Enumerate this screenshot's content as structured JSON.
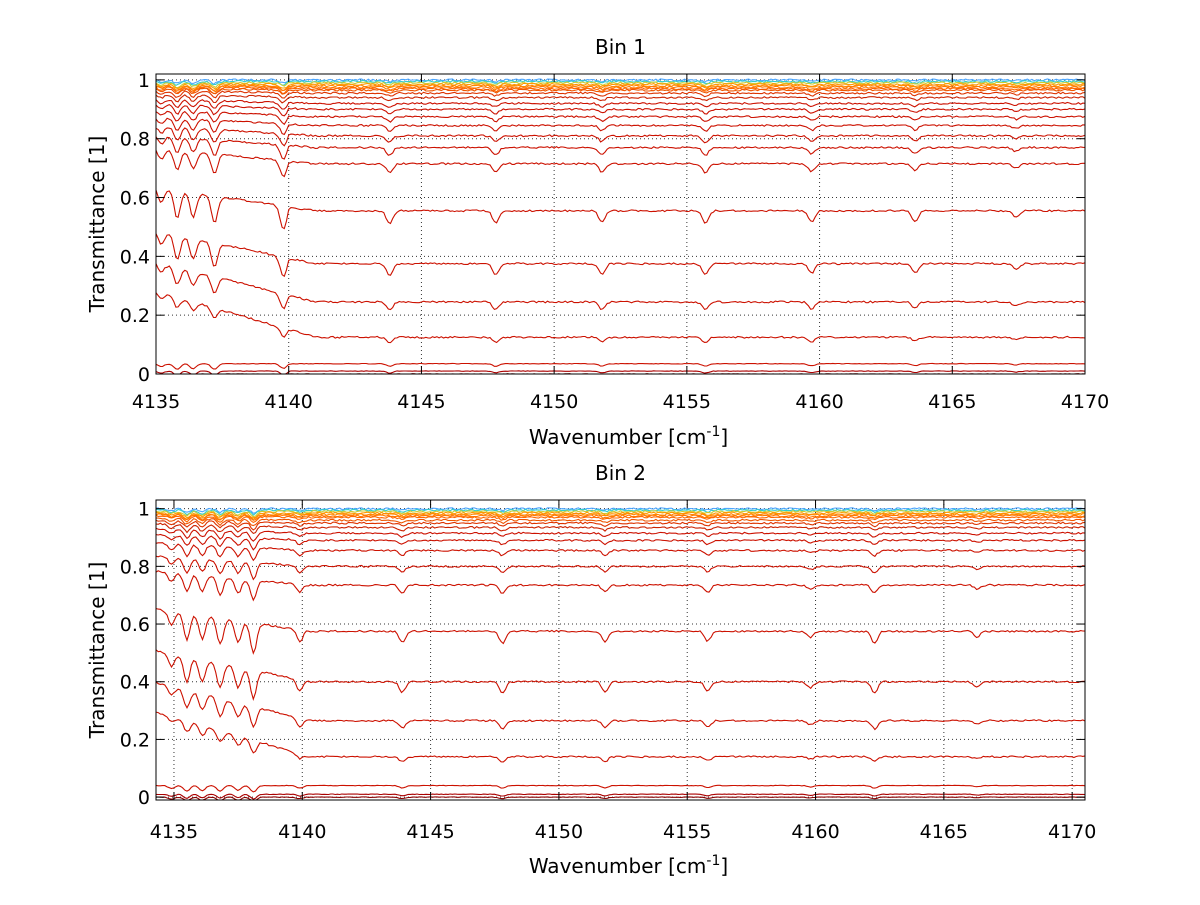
{
  "chart_data": [
    {
      "type": "line",
      "title": "Bin 1",
      "xlabel": "Wavenumber [cm",
      "xlabel_sup": "-1",
      "xlabel_close": "]",
      "ylabel": "Transmittance [1]",
      "xlim": [
        4135,
        4170
      ],
      "ylim": [
        0,
        1.02
      ],
      "xticks": [
        4135,
        4140,
        4145,
        4150,
        4155,
        4160,
        4165,
        4170
      ],
      "yticks": [
        0,
        0.2,
        0.4,
        0.6,
        0.8,
        1
      ],
      "grid": true,
      "legend": "none",
      "series_levels": [
        1.0,
        0.995,
        0.99,
        0.985,
        0.98,
        0.975,
        0.97,
        0.965,
        0.955,
        0.94,
        0.92,
        0.9,
        0.875,
        0.845,
        0.81,
        0.77,
        0.715,
        0.555,
        0.375,
        0.245,
        0.125,
        0.035,
        0.01,
        0.0
      ],
      "series_colors": [
        "#4da6ff",
        "#33cccc",
        "#cccc33",
        "#ff9900",
        "#ff8800",
        "#ff7700",
        "#ff6600",
        "#ee5500",
        "#dd3300",
        "#cc2200",
        "#cc1100",
        "#cc1100",
        "#cc1100",
        "#cc1100",
        "#cc1100",
        "#cc1100",
        "#cc1100",
        "#cc1100",
        "#cc1100",
        "#cc1100",
        "#cc1100",
        "#cc1100",
        "#aa0000",
        "#880000"
      ],
      "absorption_lines": [
        4135.2,
        4135.8,
        4136.4,
        4137.2,
        4139.8,
        4143.8,
        4147.8,
        4151.8,
        4155.7,
        4159.7,
        4163.6,
        4167.4
      ]
    },
    {
      "type": "line",
      "title": "Bin 2",
      "xlabel": "Wavenumber [cm",
      "xlabel_sup": "-1",
      "xlabel_close": "]",
      "ylabel": "Transmittance [1]",
      "xlim": [
        4134.3,
        4170.5
      ],
      "ylim": [
        -0.01,
        1.03
      ],
      "xticks": [
        4135,
        4140,
        4145,
        4150,
        4155,
        4160,
        4165,
        4170
      ],
      "yticks": [
        0,
        0.2,
        0.4,
        0.6,
        0.8,
        1
      ],
      "grid": true,
      "legend": "none",
      "series_levels": [
        1.0,
        0.995,
        0.99,
        0.985,
        0.98,
        0.975,
        0.97,
        0.96,
        0.95,
        0.935,
        0.915,
        0.89,
        0.855,
        0.8,
        0.735,
        0.575,
        0.4,
        0.265,
        0.14,
        0.04,
        0.01,
        0.0
      ],
      "series_colors": [
        "#4da6ff",
        "#33cccc",
        "#cccc33",
        "#ff9900",
        "#ff8800",
        "#ff7700",
        "#ff6600",
        "#ee5500",
        "#dd3300",
        "#cc2200",
        "#cc1100",
        "#cc1100",
        "#cc1100",
        "#cc1100",
        "#cc1100",
        "#cc1100",
        "#cc1100",
        "#cc1100",
        "#cc1100",
        "#cc1100",
        "#aa0000",
        "#880000"
      ],
      "absorption_lines": [
        4134.9,
        4135.5,
        4136.1,
        4136.8,
        4137.5,
        4138.1,
        4139.9,
        4143.9,
        4147.8,
        4151.8,
        4155.8,
        4159.8,
        4162.3,
        4166.3
      ]
    }
  ]
}
